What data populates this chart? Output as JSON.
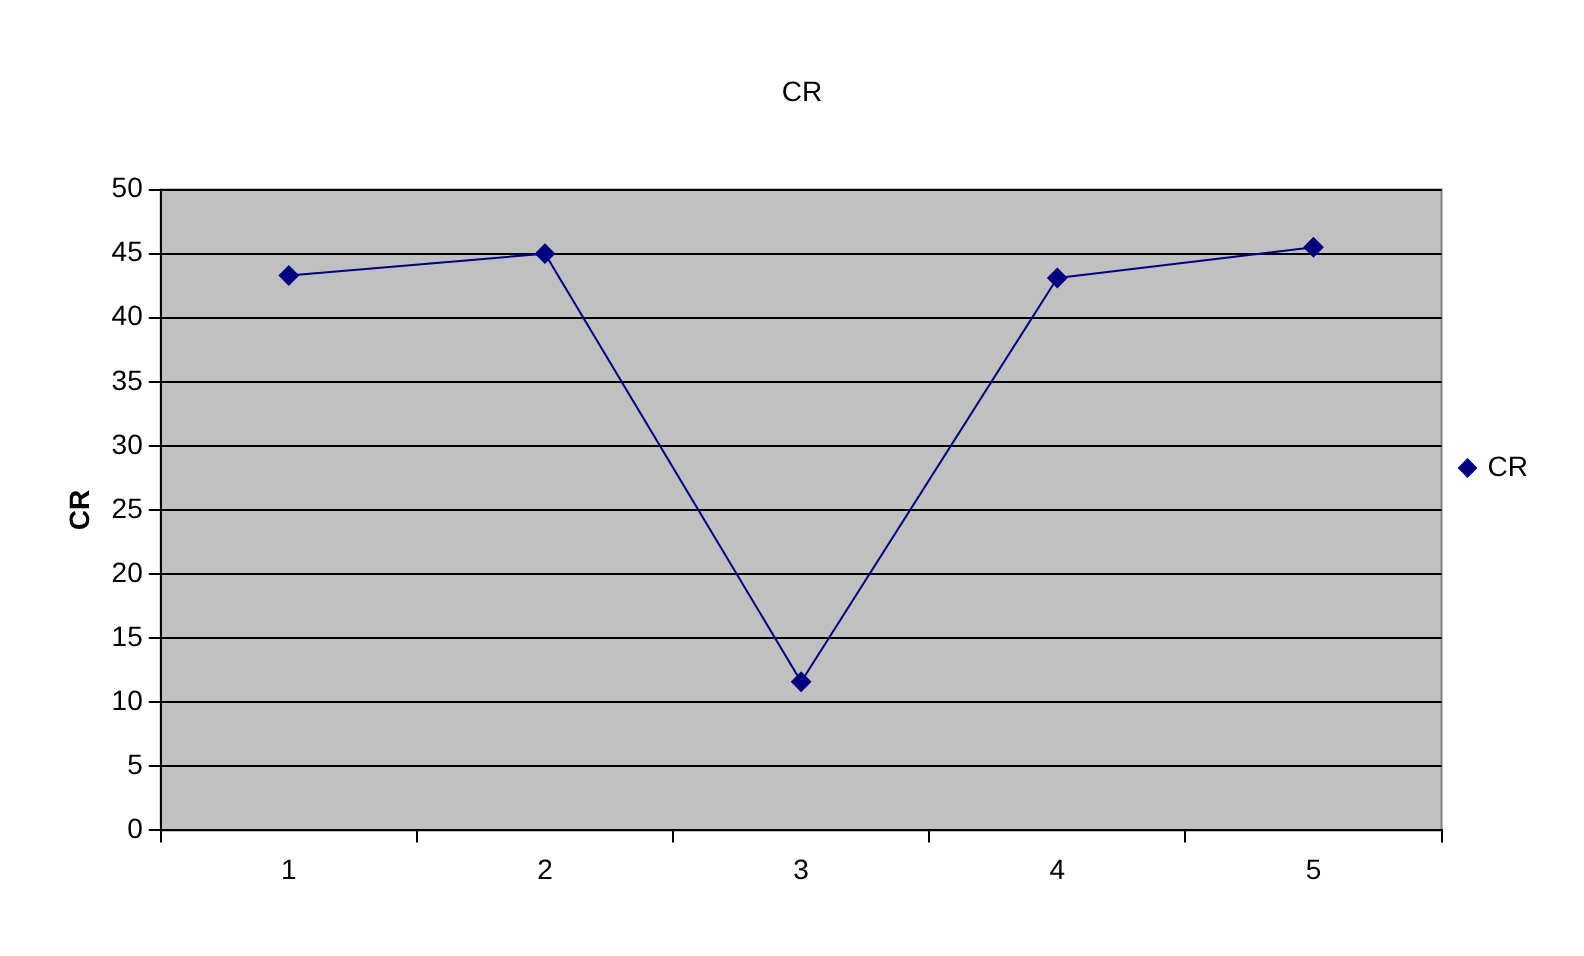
{
  "chart_data": {
    "type": "line",
    "title": "CR",
    "ylabel": "CR",
    "categories": [
      "1",
      "2",
      "3",
      "4",
      "5"
    ],
    "series": [
      {
        "name": "CR",
        "color": "#000080",
        "values": [
          43.3,
          45,
          11.6,
          43.1,
          45.5
        ]
      }
    ],
    "ylim": [
      0,
      50
    ],
    "yticks": [
      0,
      5,
      10,
      15,
      20,
      25,
      30,
      35,
      40,
      45,
      50
    ],
    "grid": "y",
    "legend": "right",
    "marker": "diamond",
    "line_style": "solid"
  }
}
